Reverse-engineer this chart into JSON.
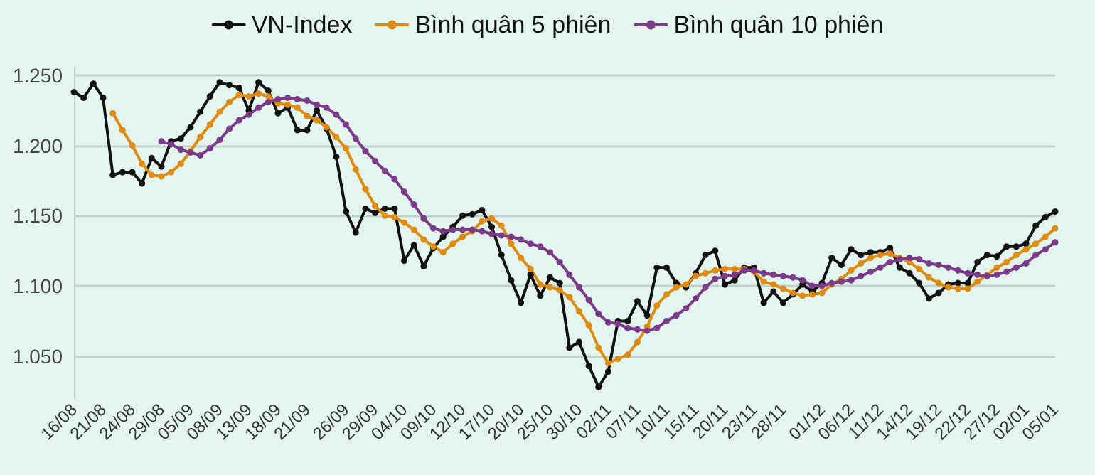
{
  "chart_data": {
    "type": "line",
    "legend": "top",
    "grid": "y",
    "marker": "circle",
    "line_style": "solid",
    "categories": [
      "16/08",
      null,
      null,
      "21/08",
      null,
      null,
      "24/08",
      null,
      null,
      "29/08",
      null,
      null,
      "05/09",
      null,
      null,
      "08/09",
      null,
      null,
      "13/09",
      null,
      null,
      "18/09",
      null,
      null,
      "21/09",
      null,
      null,
      null,
      "26/09",
      null,
      null,
      "29/09",
      null,
      null,
      "04/10",
      null,
      null,
      "09/10",
      null,
      null,
      "12/10",
      null,
      null,
      "17/10",
      null,
      null,
      "20/10",
      null,
      null,
      "25/10",
      null,
      null,
      "30/10",
      null,
      null,
      "02/11",
      null,
      null,
      "07/11",
      null,
      null,
      "10/11",
      null,
      null,
      "15/11",
      null,
      null,
      "20/11",
      null,
      null,
      "23/11",
      null,
      null,
      "28/11",
      null,
      null,
      null,
      "01/12",
      null,
      null,
      "06/12",
      null,
      null,
      "11/12",
      null,
      null,
      "14/12",
      null,
      null,
      "19/12",
      null,
      null,
      "22/12",
      null,
      null,
      "27/12",
      null,
      null,
      "02/01",
      null,
      null,
      "05/01"
    ],
    "ylim": [
      1020,
      1255
    ],
    "yticks": [
      {
        "value": 1050,
        "label": "1.050"
      },
      {
        "value": 1100,
        "label": "1.100"
      },
      {
        "value": 1150,
        "label": "1.150"
      },
      {
        "value": 1200,
        "label": "1.200"
      },
      {
        "value": 1250,
        "label": "1.250"
      }
    ],
    "series": [
      {
        "name": "VN-Index",
        "color": "#111111",
        "values": [
          1238,
          1234,
          1244,
          1234,
          1179,
          1181,
          1181,
          1173,
          1191,
          1185,
          1203,
          1205,
          1213,
          1224,
          1235,
          1245,
          1243,
          1241,
          1225,
          1245,
          1239,
          1223,
          1227,
          1211,
          1211,
          1225,
          1212,
          1192,
          1153,
          1138,
          1155,
          1152,
          1155,
          1155,
          1118,
          1129,
          1114,
          1127,
          1135,
          1142,
          1150,
          1151,
          1154,
          1142,
          1122,
          1104,
          1088,
          1108,
          1093,
          1106,
          1102,
          1056,
          1060,
          1043,
          1028,
          1039,
          1075,
          1075,
          1089,
          1079,
          1113,
          1113,
          1102,
          1099,
          1109,
          1122,
          1125,
          1101,
          1104,
          1113,
          1113,
          1088,
          1096,
          1088,
          1094,
          1101,
          1096,
          1102,
          1120,
          1115,
          1126,
          1122,
          1124,
          1124,
          1127,
          1113,
          1109,
          1102,
          1091,
          1095,
          1101,
          1102,
          1102,
          1117,
          1122,
          1121,
          1128,
          1128,
          1130,
          1143,
          1149,
          1153
        ]
      },
      {
        "name": "Bình quân 5 phiên",
        "color": "#e08a10",
        "values": [
          null,
          null,
          null,
          null,
          1223,
          1211,
          1200,
          1187,
          1179,
          1178,
          1181,
          1187,
          1196,
          1206,
          1215,
          1224,
          1231,
          1236,
          1235,
          1237,
          1235,
          1230,
          1229,
          1227,
          1221,
          1218,
          1213,
          1206,
          1198,
          1183,
          1169,
          1157,
          1150,
          1149,
          1145,
          1140,
          1133,
          1128,
          1124,
          1130,
          1135,
          1139,
          1146,
          1148,
          1143,
          1130,
          1120,
          1112,
          1101,
          1099,
          1097,
          1092,
          1082,
          1072,
          1056,
          1045,
          1048,
          1051,
          1060,
          1071,
          1086,
          1094,
          1099,
          1101,
          1107,
          1109,
          1111,
          1112,
          1112,
          1112,
          1110,
          1103,
          1101,
          1098,
          1095,
          1093,
          1094,
          1095,
          1101,
          1105,
          1111,
          1116,
          1120,
          1122,
          1123,
          1120,
          1117,
          1112,
          1106,
          1102,
          1099,
          1098,
          1098,
          1103,
          1108,
          1113,
          1117,
          1122,
          1126,
          1130,
          1135,
          1141
        ]
      },
      {
        "name": "Bình quân 10 phiên",
        "color": "#7b3a8a",
        "values": [
          null,
          null,
          null,
          null,
          null,
          null,
          null,
          null,
          null,
          1203,
          1201,
          1197,
          1195,
          1193,
          1198,
          1204,
          1212,
          1218,
          1222,
          1227,
          1231,
          1233,
          1234,
          1233,
          1232,
          1229,
          1227,
          1222,
          1215,
          1205,
          1196,
          1189,
          1182,
          1176,
          1167,
          1158,
          1148,
          1141,
          1139,
          1140,
          1140,
          1140,
          1139,
          1137,
          1136,
          1135,
          1133,
          1130,
          1128,
          1124,
          1117,
          1108,
          1099,
          1090,
          1080,
          1074,
          1073,
          1070,
          1069,
          1068,
          1070,
          1075,
          1079,
          1084,
          1091,
          1099,
          1105,
          1107,
          1108,
          1111,
          1111,
          1109,
          1108,
          1107,
          1106,
          1104,
          1100,
          1100,
          1102,
          1103,
          1104,
          1107,
          1110,
          1113,
          1117,
          1119,
          1120,
          1119,
          1116,
          1115,
          1113,
          1111,
          1109,
          1108,
          1107,
          1108,
          1110,
          1113,
          1116,
          1122,
          1126,
          1131
        ]
      }
    ]
  }
}
